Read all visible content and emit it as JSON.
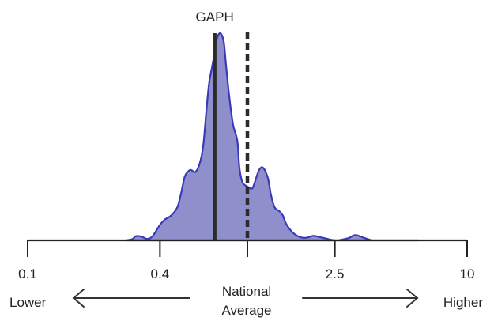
{
  "chart_data": {
    "type": "area",
    "title": "",
    "xlabel": "",
    "ylabel": "",
    "x_scale": "log",
    "xlim": [
      0.1,
      10
    ],
    "ylim": [
      0,
      1.0
    ],
    "grid": false,
    "colors": {
      "fill": "#8f8fcc",
      "stroke": "#3a3ab8",
      "marker": "#2b2b2b",
      "axis": "#222222"
    },
    "x_ticks": [
      {
        "value": 0.1,
        "label": "0.1"
      },
      {
        "value": 0.4,
        "label": "0.4"
      },
      {
        "value": 1,
        "label": ""
      },
      {
        "value": 2.5,
        "label": "2.5"
      },
      {
        "value": 10,
        "label": "10"
      }
    ],
    "series": [
      {
        "x": [
          0.28,
          0.3,
          0.31,
          0.33,
          0.35,
          0.37,
          0.4,
          0.42,
          0.45,
          0.48,
          0.5,
          0.52,
          0.55,
          0.58,
          0.61,
          0.63,
          0.65,
          0.67,
          0.7,
          0.72,
          0.75,
          0.78,
          0.8,
          0.83,
          0.86,
          0.9,
          0.92,
          0.95,
          1.0,
          1.05,
          1.08,
          1.13,
          1.18,
          1.24,
          1.28,
          1.33,
          1.4,
          1.45,
          1.5,
          1.6,
          1.7,
          1.8,
          1.9,
          2.0,
          2.15,
          2.3,
          2.4,
          2.55,
          2.7,
          2.9,
          3.1,
          3.4,
          3.7,
          4.0,
          4.3,
          4.6,
          4.8,
          5.1,
          5.5,
          6.0
        ],
        "y": [
          0.0,
          0.006,
          0.02,
          0.018,
          0.007,
          0.02,
          0.075,
          0.1,
          0.12,
          0.16,
          0.23,
          0.31,
          0.34,
          0.33,
          0.38,
          0.46,
          0.62,
          0.76,
          0.87,
          0.96,
          1.0,
          0.96,
          0.84,
          0.68,
          0.56,
          0.48,
          0.35,
          0.28,
          0.26,
          0.25,
          0.28,
          0.34,
          0.35,
          0.3,
          0.22,
          0.16,
          0.14,
          0.12,
          0.08,
          0.04,
          0.02,
          0.012,
          0.015,
          0.022,
          0.015,
          0.008,
          0.003,
          0.0,
          0.004,
          0.012,
          0.025,
          0.012,
          0.0,
          0.0,
          0.0,
          0.0,
          0.0,
          0.0,
          0.0,
          0.0
        ]
      }
    ],
    "reference_lines": [
      {
        "x": 0.71,
        "style": "solid",
        "label": "GAPH"
      },
      {
        "x": 1.0,
        "style": "dashed",
        "label": ""
      }
    ],
    "annotations": {
      "left": "Lower",
      "right": "Higher",
      "center_line1": "National",
      "center_line2": "Average"
    }
  }
}
